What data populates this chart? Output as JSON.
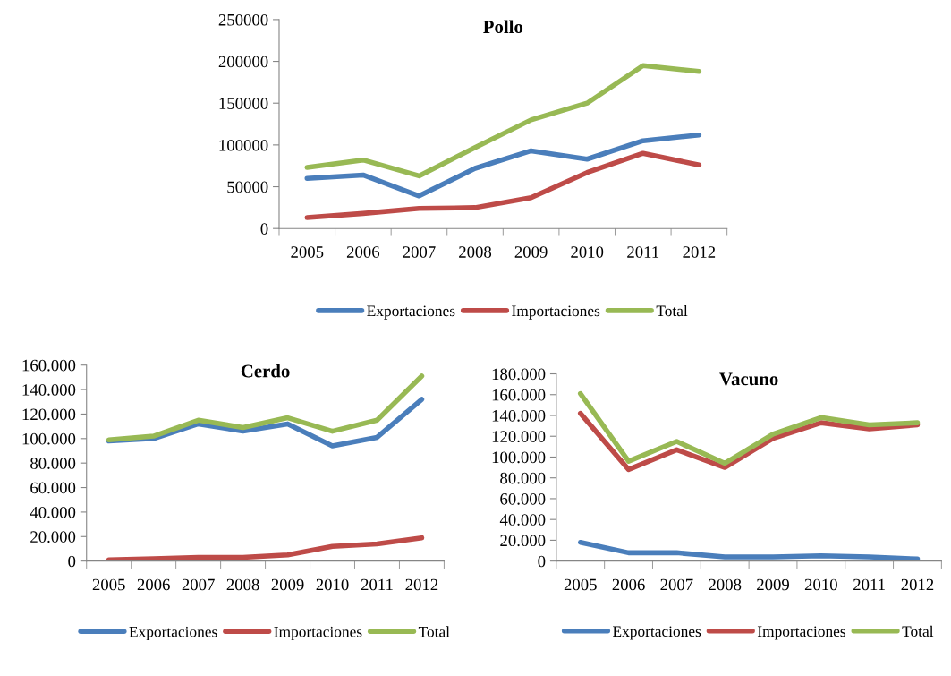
{
  "chart_data": [
    {
      "type": "line",
      "title": "Pollo",
      "categories": [
        "2005",
        "2006",
        "2007",
        "2008",
        "2009",
        "2010",
        "2011",
        "2012"
      ],
      "series": [
        {
          "name": "Exportaciones",
          "color": "#4a7ebb",
          "values": [
            60000,
            64000,
            39000,
            72000,
            93000,
            83000,
            105000,
            112000
          ]
        },
        {
          "name": "Importaciones",
          "color": "#be4b48",
          "values": [
            13000,
            18000,
            24000,
            25000,
            37000,
            67000,
            90000,
            76000
          ]
        },
        {
          "name": "Total",
          "color": "#98b954",
          "values": [
            73000,
            82000,
            63000,
            97000,
            130000,
            150000,
            195000,
            188000
          ]
        }
      ],
      "ylim": [
        0,
        250000
      ],
      "yticks": [
        0,
        50000,
        100000,
        150000,
        200000,
        250000
      ],
      "grid": false,
      "legend": "bottom",
      "marker": "none",
      "line_style": "solid"
    },
    {
      "type": "line",
      "title": "Cerdo",
      "categories": [
        "2005",
        "2006",
        "2007",
        "2008",
        "2009",
        "2010",
        "2011",
        "2012"
      ],
      "series": [
        {
          "name": "Exportaciones",
          "color": "#4a7ebb",
          "values": [
            98000,
            100000,
            112000,
            106000,
            112000,
            94000,
            101000,
            132000
          ]
        },
        {
          "name": "Importaciones",
          "color": "#be4b48",
          "values": [
            1000,
            2000,
            3000,
            3000,
            5000,
            12000,
            14000,
            19000
          ]
        },
        {
          "name": "Total",
          "color": "#98b954",
          "values": [
            99000,
            102000,
            115000,
            109000,
            117000,
            106000,
            115000,
            151000
          ]
        }
      ],
      "ylim": [
        0,
        160000
      ],
      "yticks": [
        0,
        {
          "value": 20000,
          "label": "20.000"
        },
        {
          "value": 40000,
          "label": "40.000"
        },
        {
          "value": 60000,
          "label": "60.000"
        },
        {
          "value": 80000,
          "label": "80.000"
        },
        {
          "value": 100000,
          "label": "100.000"
        },
        {
          "value": 120000,
          "label": "120.000"
        },
        {
          "value": 140000,
          "label": "140.000"
        },
        {
          "value": 160000,
          "label": "160.000"
        }
      ],
      "grid": false,
      "legend": "bottom",
      "marker": "none",
      "line_style": "solid"
    },
    {
      "type": "line",
      "title": "Vacuno",
      "categories": [
        "2005",
        "2006",
        "2007",
        "2008",
        "2009",
        "2010",
        "2011",
        "2012"
      ],
      "series": [
        {
          "name": "Exportaciones",
          "color": "#4a7ebb",
          "values": [
            18000,
            8000,
            8000,
            4000,
            4000,
            5000,
            4000,
            2000
          ]
        },
        {
          "name": "Importaciones",
          "color": "#be4b48",
          "values": [
            142000,
            88000,
            107000,
            90000,
            118000,
            133000,
            127000,
            131000
          ]
        },
        {
          "name": "Total",
          "color": "#98b954",
          "values": [
            161000,
            96000,
            115000,
            94000,
            122000,
            138000,
            131000,
            133000
          ]
        }
      ],
      "ylim": [
        0,
        180000
      ],
      "yticks": [
        0,
        {
          "value": 20000,
          "label": "20.000"
        },
        {
          "value": 40000,
          "label": "40.000"
        },
        {
          "value": 60000,
          "label": "60.000"
        },
        {
          "value": 80000,
          "label": "80.000"
        },
        {
          "value": 100000,
          "label": "100.000"
        },
        {
          "value": 120000,
          "label": "120.000"
        },
        {
          "value": 140000,
          "label": "140.000"
        },
        {
          "value": 160000,
          "label": "160.000"
        },
        {
          "value": 180000,
          "label": "180.000"
        }
      ],
      "grid": false,
      "legend": "bottom",
      "marker": "none",
      "line_style": "solid"
    }
  ]
}
